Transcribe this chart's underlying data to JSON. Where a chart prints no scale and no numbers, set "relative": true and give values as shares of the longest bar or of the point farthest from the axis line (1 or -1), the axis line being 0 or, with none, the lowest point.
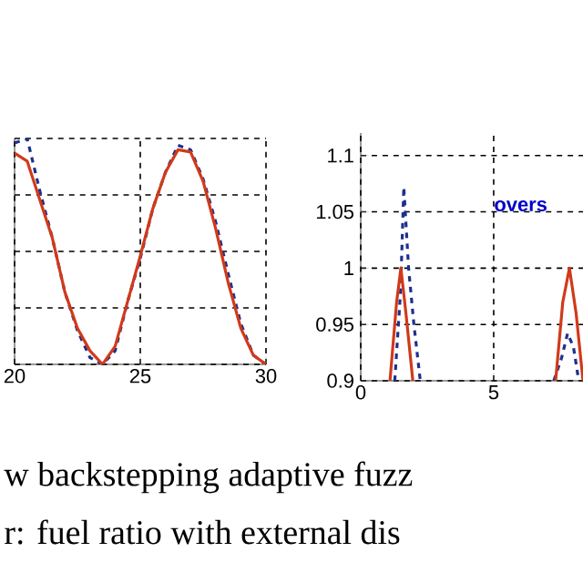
{
  "chart_data": [
    {
      "type": "line",
      "relative": true,
      "xlim": [
        20,
        30
      ],
      "xticks": [
        20,
        25,
        30
      ],
      "grid": true,
      "tick_labels": "x",
      "annotations": [
        "w backstepping adaptive fuzz",
        "r: fuel ratio with external dis"
      ],
      "series": [
        {
          "color": "#1f2f8f",
          "line_style": "dashed",
          "x": [
            20,
            20.5,
            21,
            21.5,
            22,
            22.5,
            23,
            23.5,
            24,
            24.5,
            25,
            25.5,
            26,
            26.5,
            27,
            27.5,
            28,
            28.5,
            29,
            29.5,
            30
          ],
          "values": [
            0.98,
            1.0,
            0.77,
            0.56,
            0.32,
            0.15,
            0.03,
            0,
            0.06,
            0.28,
            0.47,
            0.69,
            0.85,
            0.97,
            0.95,
            0.82,
            0.63,
            0.4,
            0.18,
            0.04,
            0
          ]
        },
        {
          "color": "#d03a1a",
          "line_style": "solid",
          "x": [
            20,
            20.5,
            21,
            21.5,
            22,
            22.5,
            23,
            23.5,
            24,
            24.5,
            25,
            25.5,
            26,
            26.5,
            27,
            27.5,
            28,
            28.5,
            29,
            29.5,
            30
          ],
          "values": [
            0.935,
            0.9,
            0.73,
            0.56,
            0.32,
            0.16,
            0.06,
            0,
            0.08,
            0.28,
            0.48,
            0.69,
            0.85,
            0.95,
            0.94,
            0.81,
            0.6,
            0.36,
            0.16,
            0.04,
            0
          ]
        }
      ]
    },
    {
      "type": "line",
      "xlim": [
        0,
        8.36
      ],
      "xticks": [
        0,
        5
      ],
      "ylim": [
        0.9,
        1.12
      ],
      "yticks": [
        0.9,
        0.95,
        1,
        1.05,
        1.1
      ],
      "grid": true,
      "annotations": [
        "overs"
      ],
      "series": [
        {
          "color": "#1f2f8f",
          "line_style": "dashed",
          "x": [
            1.28,
            1.5,
            1.62,
            1.8,
            2.0,
            2.24,
            4.5,
            7.26,
            7.55,
            7.78,
            8.0,
            8.2
          ],
          "values": [
            0.9,
            0.98,
            1.072,
            1.0,
            0.95,
            0.9,
            null,
            0.9,
            0.92,
            0.942,
            0.93,
            0.9
          ]
        },
        {
          "color": "#d03a1a",
          "line_style": "solid",
          "x": [
            1.1,
            1.35,
            1.51,
            1.7,
            1.96,
            4.5,
            7.33,
            7.6,
            7.85,
            8.1,
            8.36
          ],
          "values": [
            0.9,
            0.97,
            1.0,
            0.96,
            0.9,
            null,
            0.9,
            0.97,
            1.0,
            0.96,
            0.9
          ]
        }
      ]
    }
  ]
}
